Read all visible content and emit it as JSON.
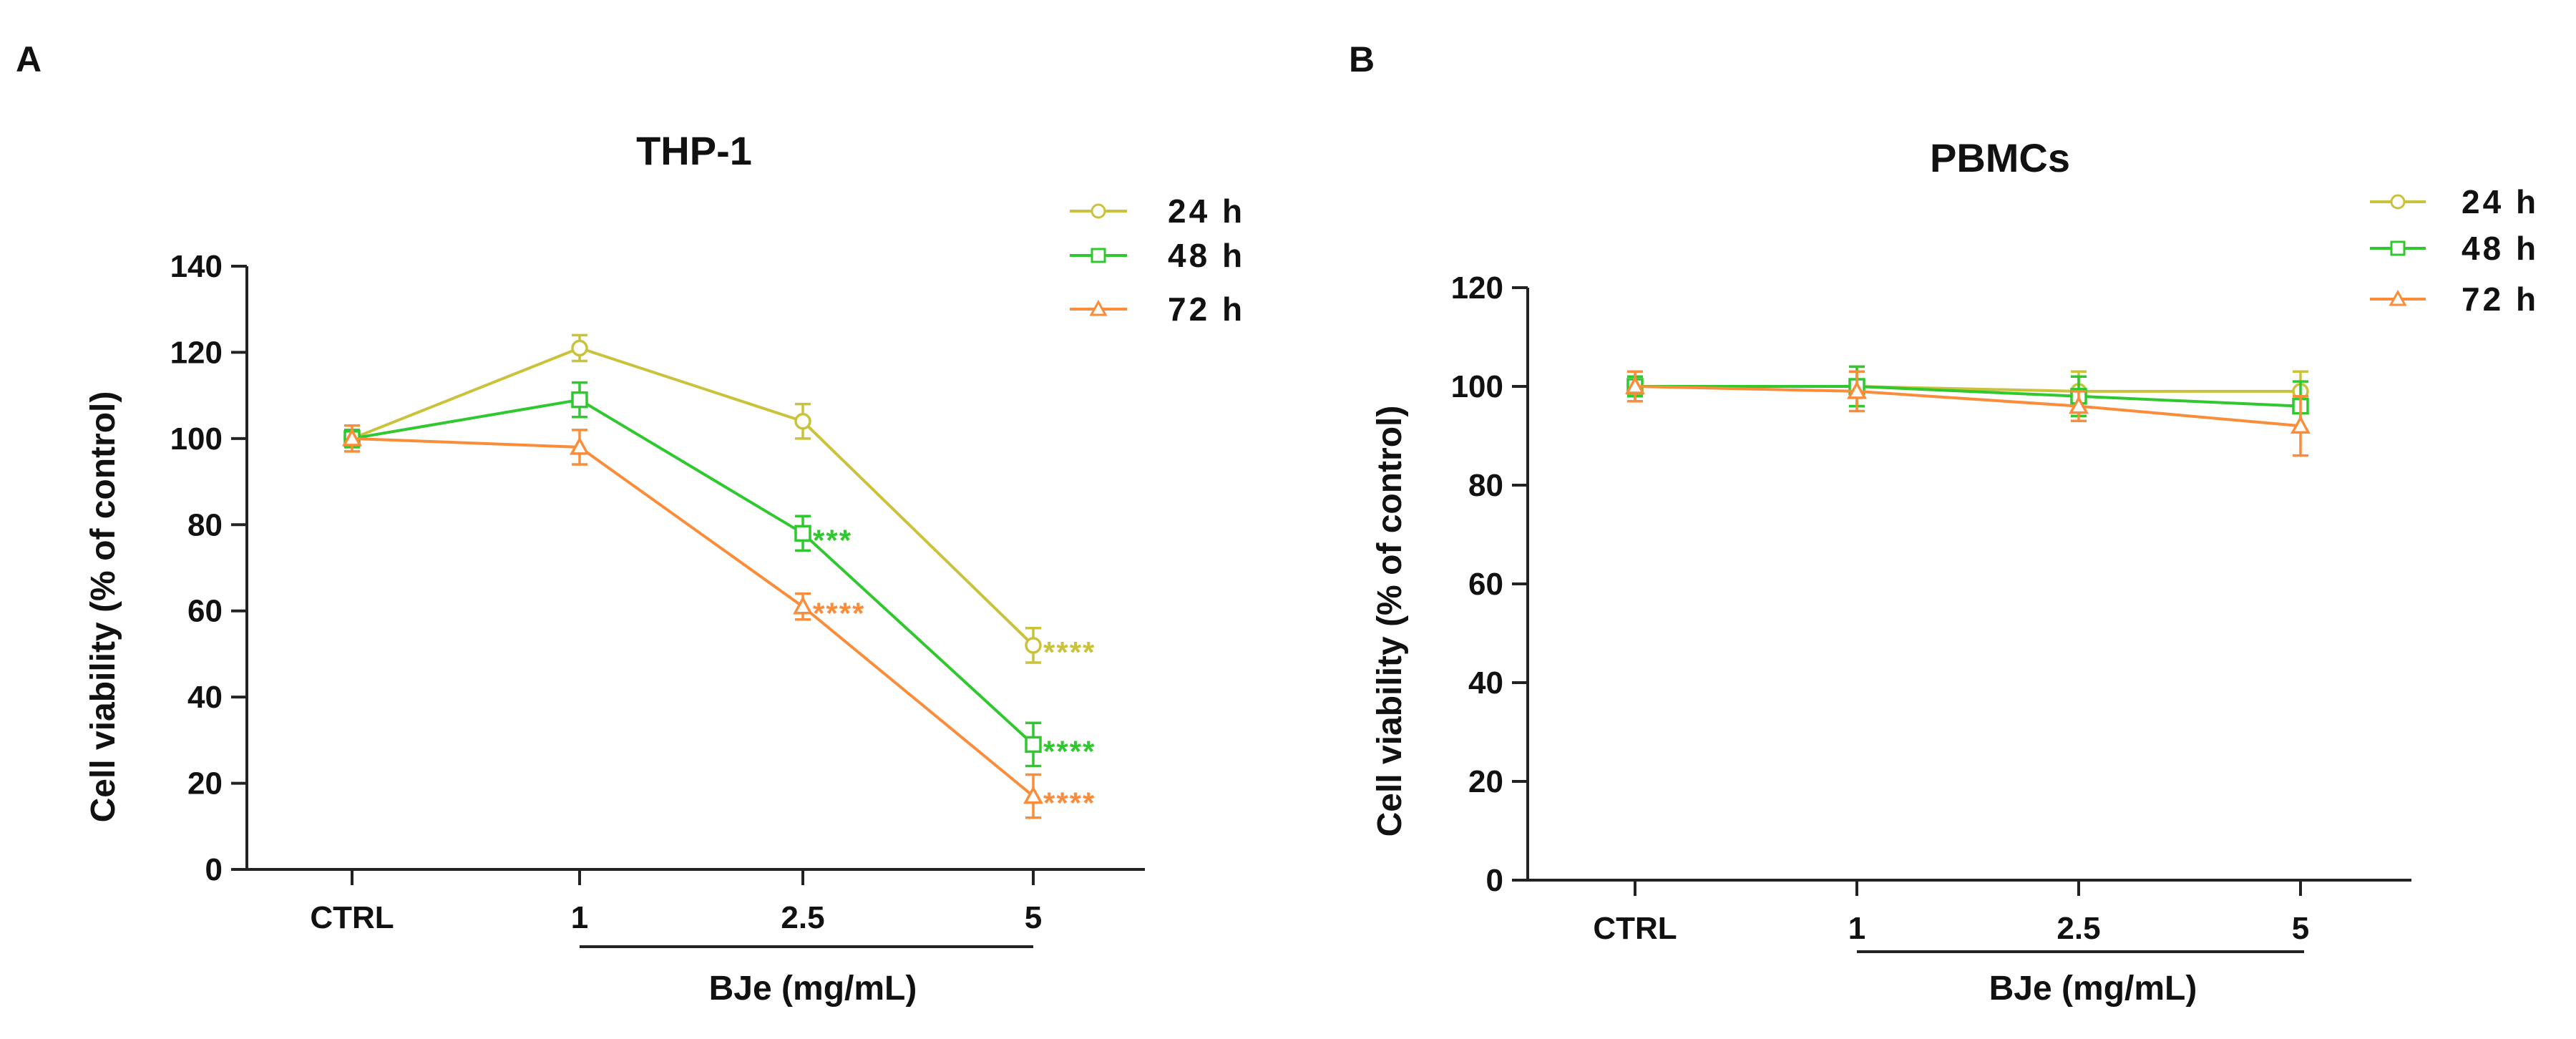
{
  "panel_labels": [
    "A",
    "B"
  ],
  "colors": {
    "24 h": "#c9c23a",
    "48 h": "#2fc82f",
    "72 h": "#fb8c3a",
    "axis": "#222222"
  },
  "chart_data": [
    {
      "type": "line",
      "panel": "A",
      "title": "THP-1",
      "xlabel": "BJe (mg/mL)",
      "ylabel": "Cell viability (% of control)",
      "categories": [
        "CTRL",
        "1",
        "2.5",
        "5"
      ],
      "ylim": [
        0,
        140
      ],
      "yticks": [
        0,
        20,
        40,
        60,
        80,
        100,
        120,
        140
      ],
      "yticklabels": [
        "0",
        "20",
        "40",
        "60",
        "80",
        "100",
        "120",
        "140"
      ],
      "grid": false,
      "legend_position": "top-right",
      "series": [
        {
          "name": "24 h",
          "marker": "circle",
          "values": [
            100,
            121,
            104,
            52
          ],
          "errors": [
            2,
            3,
            4,
            4
          ],
          "annotations": [
            "",
            "",
            "",
            "****"
          ]
        },
        {
          "name": "48 h",
          "marker": "square",
          "values": [
            100,
            109,
            78,
            29
          ],
          "errors": [
            2,
            4,
            4,
            5
          ],
          "annotations": [
            "",
            "",
            "***",
            "****"
          ]
        },
        {
          "name": "72 h",
          "marker": "triangle",
          "values": [
            100,
            98,
            61,
            17
          ],
          "errors": [
            3,
            4,
            3,
            5
          ],
          "annotations": [
            "",
            "",
            "****",
            "****"
          ]
        }
      ]
    },
    {
      "type": "line",
      "panel": "B",
      "title": "PBMCs",
      "xlabel": "BJe (mg/mL)",
      "ylabel": "Cell viability (% of control)",
      "categories": [
        "CTRL",
        "1",
        "2.5",
        "5"
      ],
      "ylim": [
        0,
        120
      ],
      "yticks": [
        0,
        20,
        40,
        60,
        80,
        100,
        120
      ],
      "yticklabels": [
        "0",
        "20",
        "40",
        "60",
        "80",
        "100",
        "120"
      ],
      "grid": false,
      "legend_position": "top-right",
      "series": [
        {
          "name": "24 h",
          "marker": "circle",
          "values": [
            100,
            100,
            99,
            99
          ],
          "errors": [
            3,
            4,
            4,
            4
          ],
          "annotations": [
            "",
            "",
            "",
            ""
          ]
        },
        {
          "name": "48 h",
          "marker": "square",
          "values": [
            100,
            100,
            98,
            96
          ],
          "errors": [
            2,
            4,
            4,
            5
          ],
          "annotations": [
            "",
            "",
            "",
            ""
          ]
        },
        {
          "name": "72 h",
          "marker": "triangle",
          "values": [
            100,
            99,
            96,
            92
          ],
          "errors": [
            3,
            4,
            3,
            6
          ],
          "annotations": [
            "",
            "",
            "",
            ""
          ]
        }
      ]
    }
  ]
}
